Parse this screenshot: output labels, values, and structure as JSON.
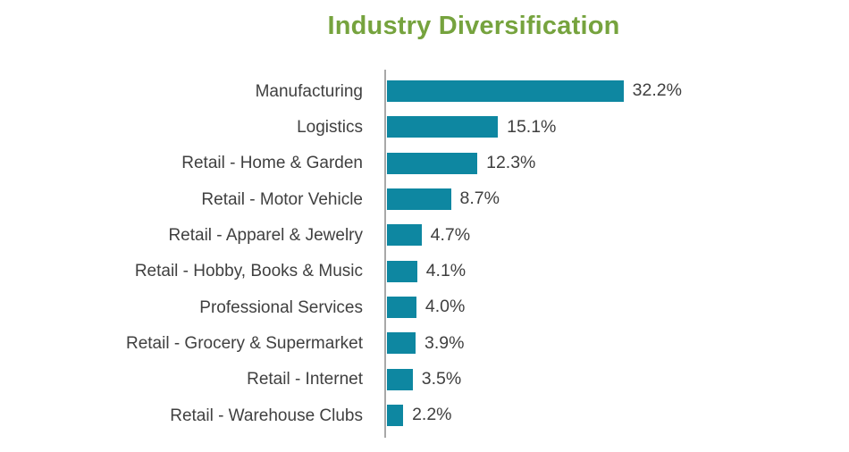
{
  "title": "Industry Diversification",
  "colors": {
    "title": "#76a33e",
    "bar": "#0e87a1",
    "category_label": "#404040",
    "value_label": "#3f3f3f",
    "axis": "#a8a8a8",
    "background": "#ffffff"
  },
  "chart_data": {
    "type": "bar",
    "orientation": "horizontal",
    "title": "Industry Diversification",
    "categories": [
      "Manufacturing",
      "Logistics",
      "Retail - Home & Garden",
      "Retail - Motor Vehicle",
      "Retail - Apparel & Jewelry",
      "Retail - Hobby, Books & Music",
      "Professional Services",
      "Retail - Grocery & Supermarket",
      "Retail - Internet",
      "Retail - Warehouse Clubs"
    ],
    "values": [
      32.2,
      15.1,
      12.3,
      8.7,
      4.7,
      4.1,
      4.0,
      3.9,
      3.5,
      2.2
    ],
    "value_labels": [
      "32.2%",
      "15.1%",
      "12.3%",
      "8.7%",
      "4.7%",
      "4.1%",
      "4.0%",
      "3.9%",
      "3.5%",
      "2.2%"
    ],
    "xlabel": "",
    "ylabel": "",
    "xlim": [
      0,
      35
    ],
    "grid": false,
    "legend": false,
    "data_labels": "outside-end"
  }
}
